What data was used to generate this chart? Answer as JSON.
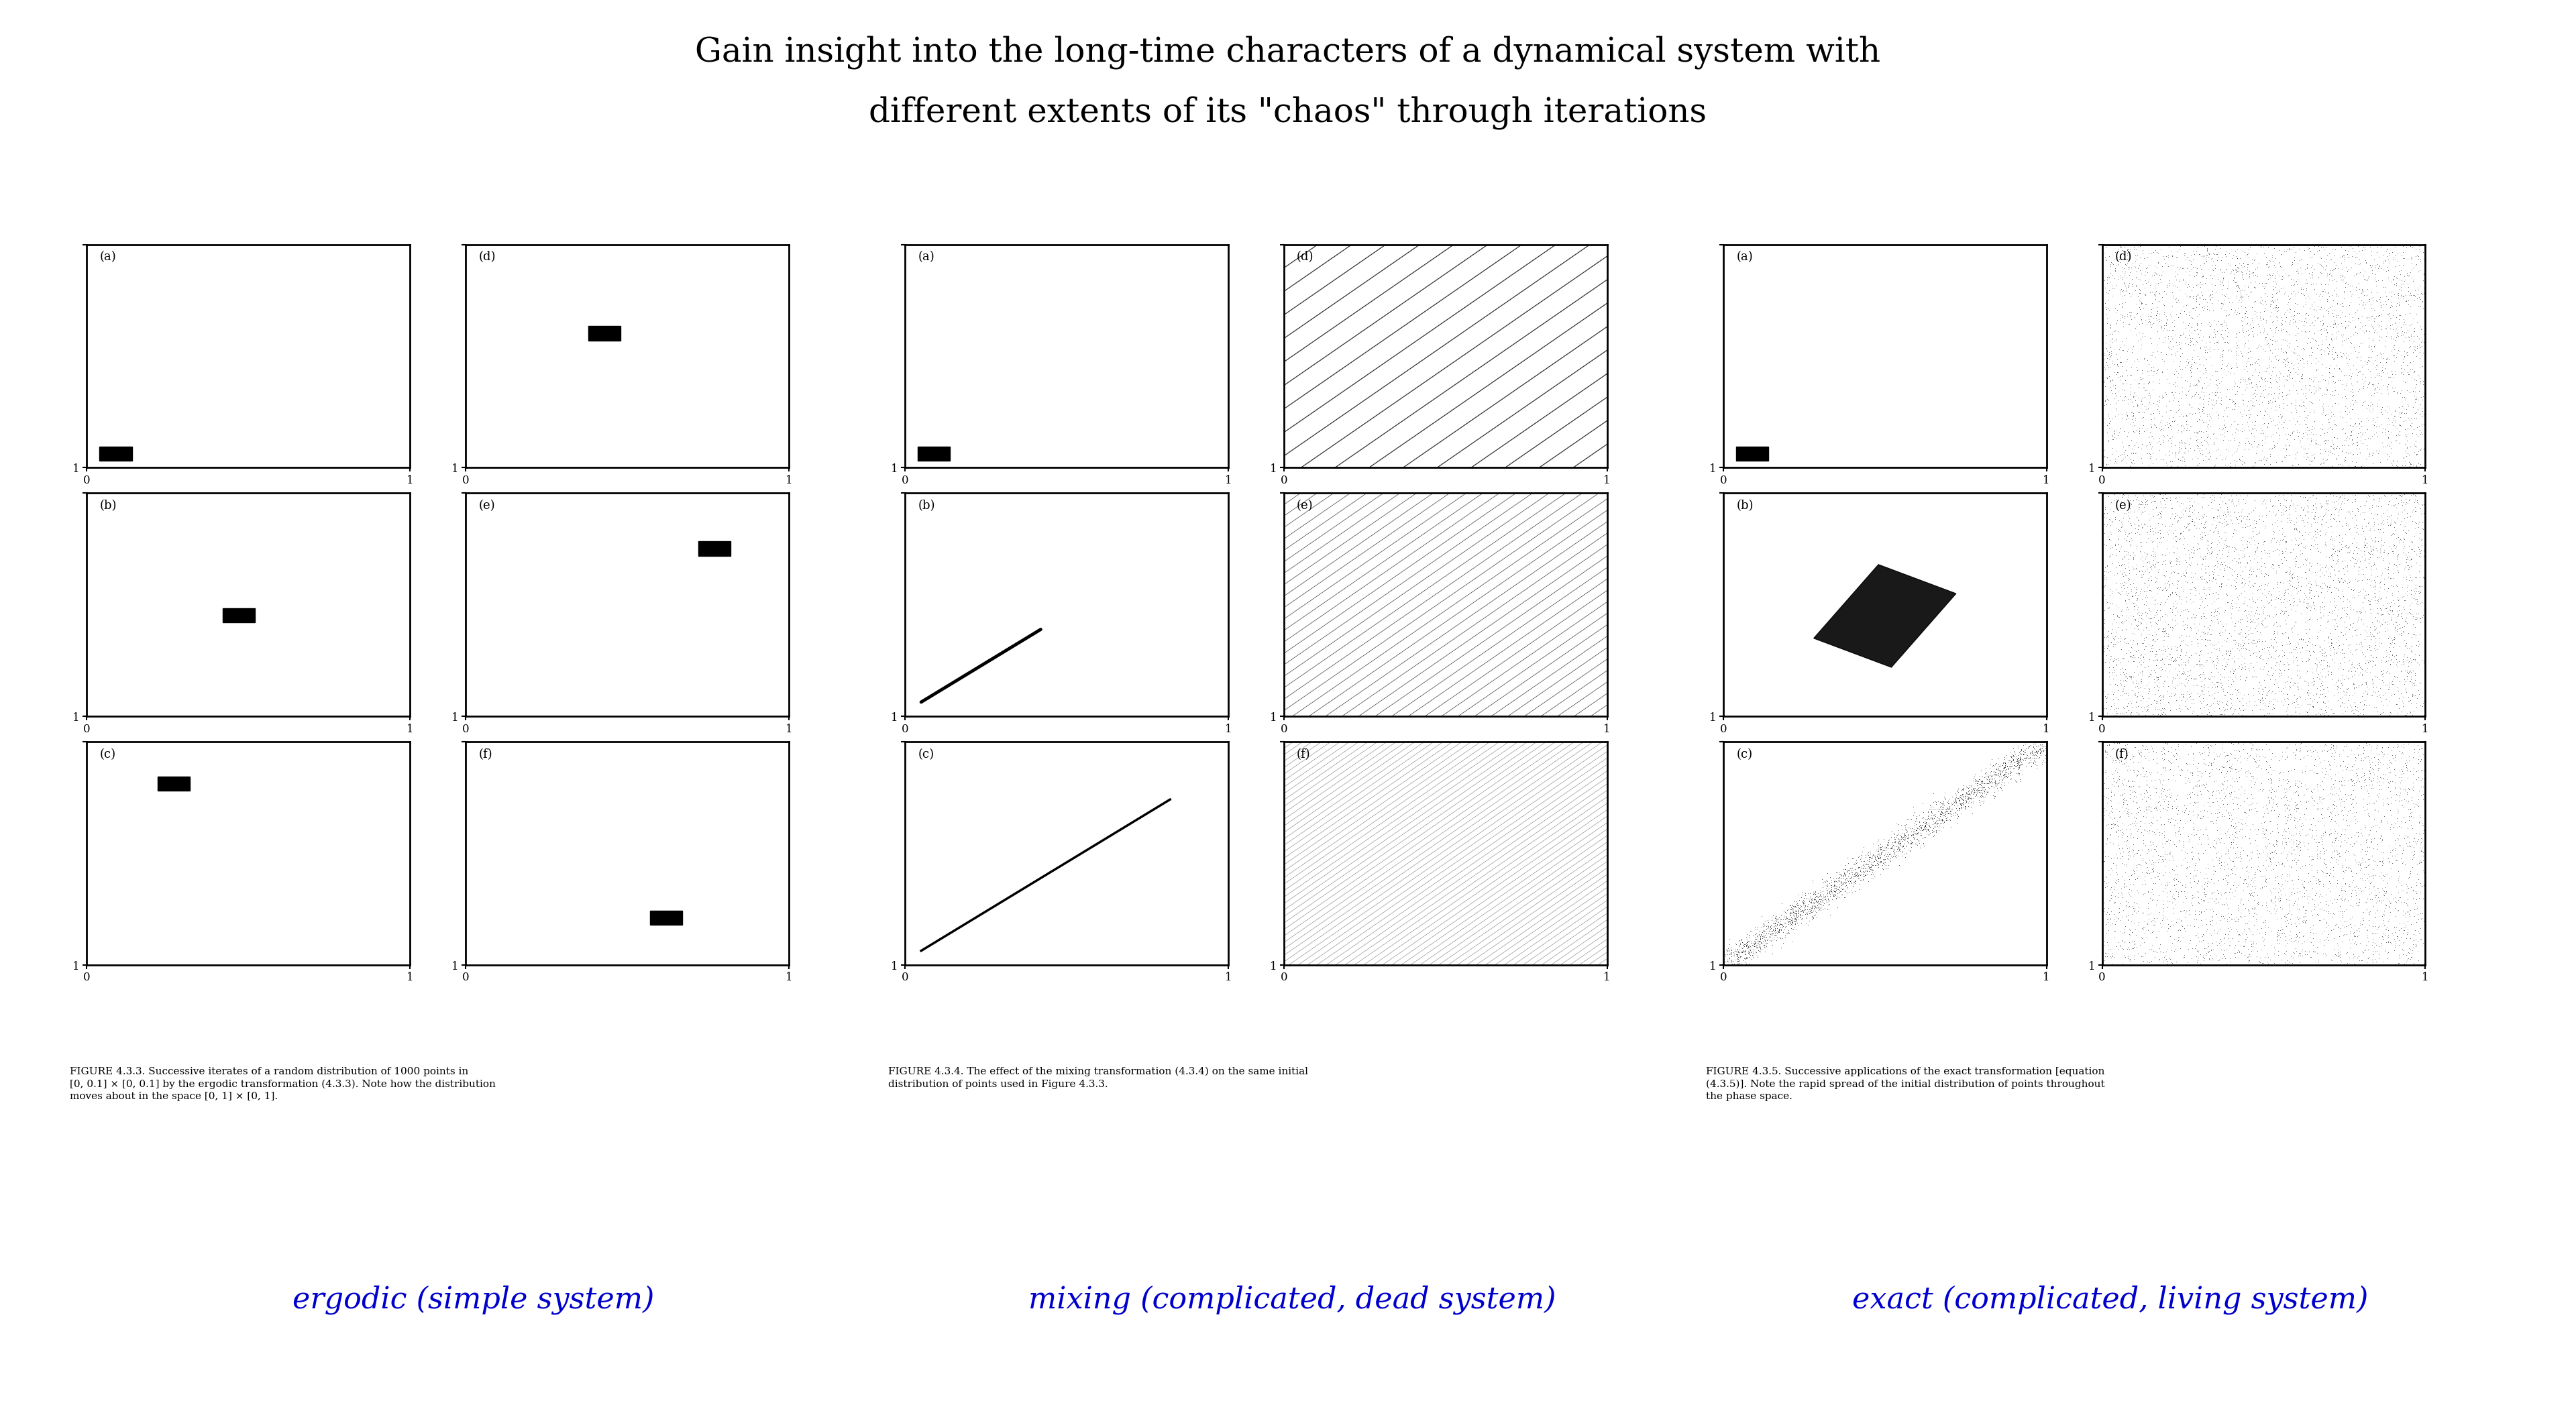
{
  "title_line1": "Gain insight into the long-time characters of a dynamical system with",
  "title_line2": "different extents of its \"chaos\" through iterations",
  "title_fontsize": 36,
  "title_color": "#000000",
  "background_color": "#ffffff",
  "caption1": "FIGURE 4.3.3. Successive iterates of a random distribution of 1000 points in\n[0, 0.1] × [0, 0.1] by the ergodic transformation (4.3.3). Note how the distribution\nmoves about in the space [0, 1] × [0, 1].",
  "caption2": "FIGURE 4.3.4. The effect of the mixing transformation (4.3.4) on the same initial\ndistribution of points used in Figure 4.3.3.",
  "caption3": "FIGURE 4.3.5. Successive applications of the exact transformation [equation\n(4.3.5)]. Note the rapid spread of the initial distribution of points throughout\nthe phase space.",
  "label1": "ergodic (simple system)",
  "label2": "mixing (complicated, dead system)",
  "label3": "exact (complicated, living system)",
  "label_color": "#0000cc",
  "label_fontsize": 32,
  "caption_fontsize": 11
}
